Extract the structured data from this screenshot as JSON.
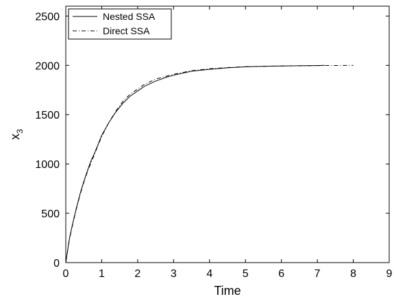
{
  "chart_data": {
    "type": "line",
    "title": "",
    "xlabel": "Time",
    "ylabel_main": "x",
    "ylabel_sub": "3",
    "xlim": [
      0,
      9
    ],
    "ylim": [
      0,
      2600
    ],
    "xticks": [
      0,
      1,
      2,
      3,
      4,
      5,
      6,
      7,
      8,
      9
    ],
    "yticks": [
      0,
      500,
      1000,
      1500,
      2000,
      2500
    ],
    "grid": false,
    "legend_position": "top-left",
    "series": [
      {
        "name": "Nested SSA",
        "style": "solid",
        "x": [
          0,
          0.1,
          0.2,
          0.3,
          0.4,
          0.5,
          0.6,
          0.7,
          0.8,
          0.9,
          1.0,
          1.2,
          1.4,
          1.6,
          1.8,
          2.0,
          2.2,
          2.5,
          2.8,
          3.0,
          3.5,
          4.0,
          4.5,
          5.0,
          5.5,
          6.0,
          6.5,
          7.0,
          7.2
        ],
        "y": [
          0,
          240,
          410,
          560,
          700,
          820,
          930,
          1030,
          1110,
          1200,
          1290,
          1420,
          1530,
          1620,
          1690,
          1740,
          1790,
          1840,
          1880,
          1900,
          1940,
          1960,
          1975,
          1985,
          1990,
          1993,
          1996,
          1998,
          2000
        ]
      },
      {
        "name": "Direct SSA",
        "style": "dashdot",
        "x": [
          0,
          0.1,
          0.2,
          0.3,
          0.4,
          0.5,
          0.6,
          0.7,
          0.8,
          0.9,
          1.0,
          1.2,
          1.4,
          1.6,
          1.8,
          2.0,
          2.2,
          2.5,
          2.8,
          3.0,
          3.5,
          4.0,
          4.5,
          5.0,
          5.5,
          6.0,
          6.5,
          7.0,
          7.5,
          8.0
        ],
        "y": [
          0,
          230,
          400,
          550,
          690,
          810,
          920,
          1010,
          1100,
          1190,
          1280,
          1420,
          1540,
          1640,
          1710,
          1760,
          1810,
          1860,
          1890,
          1910,
          1945,
          1965,
          1978,
          1986,
          1991,
          1994,
          1996,
          1998,
          1999,
          2000
        ]
      }
    ]
  },
  "colors": {
    "line": "#000000",
    "background": "#ffffff",
    "axes": "#000000"
  }
}
